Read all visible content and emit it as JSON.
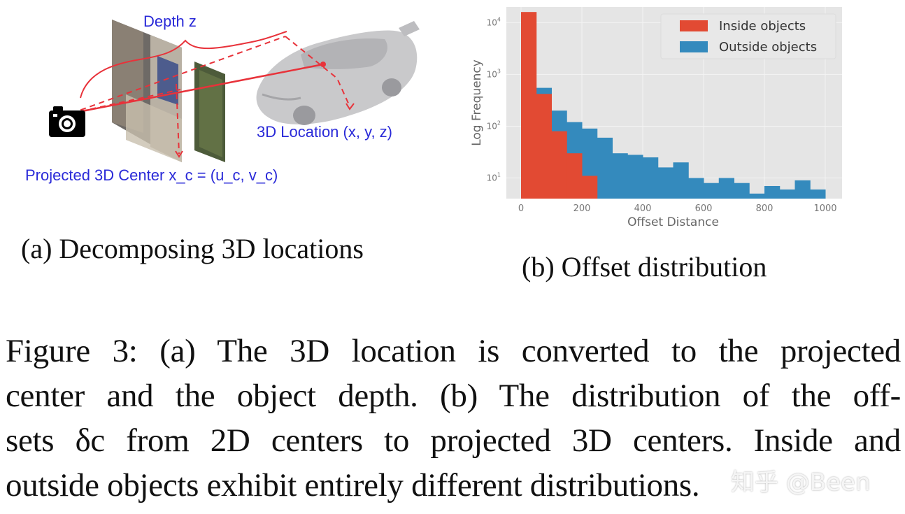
{
  "figure_a": {
    "labels": {
      "depth": "Depth z",
      "location": "3D Location  (x, y, z)",
      "projected": "Projected 3D Center x_c = (u_c, v_c)"
    },
    "icons": [
      "camera-icon",
      "car-model",
      "image-plane"
    ],
    "colors": {
      "label": "#2a2ad8",
      "ray": "#e8323a"
    },
    "subcaption": "(a) Decomposing 3D locations"
  },
  "figure_b": {
    "subcaption": "(b) Offset distribution"
  },
  "chart_data": {
    "type": "bar",
    "subtype": "histogram",
    "yscale": "log",
    "title": "",
    "xlabel": "Offset Distance",
    "ylabel": "Log Frequency",
    "xlim": [
      0,
      1000
    ],
    "ylim": [
      4,
      20000
    ],
    "xticks": [
      "0",
      "200",
      "400",
      "600",
      "800",
      "1000"
    ],
    "yticks": [
      "10^1",
      "10^2",
      "10^3",
      "10^4"
    ],
    "grid": true,
    "background": "#e5e5e5",
    "legend_position": "upper right",
    "bin_width": 50,
    "bin_edges": [
      0,
      50,
      100,
      150,
      200,
      250,
      300,
      350,
      400,
      450,
      500,
      550,
      600,
      650,
      700,
      750,
      800,
      850,
      900,
      950,
      1000
    ],
    "series": [
      {
        "name": "Inside objects",
        "color": "#e24a33",
        "values": [
          16000,
          420,
          80,
          30,
          11,
          0,
          0,
          0,
          0,
          0,
          0,
          0,
          0,
          0,
          0,
          0,
          0,
          0,
          0,
          0
        ]
      },
      {
        "name": "Outside objects",
        "color": "#348abd",
        "values": [
          0,
          550,
          200,
          120,
          90,
          60,
          30,
          28,
          25,
          16,
          20,
          10,
          8,
          10,
          8,
          5,
          7,
          6,
          9,
          6
        ]
      }
    ]
  },
  "caption": {
    "lines": [
      "Figure 3: (a) The 3D location is converted to the projected",
      "center and the object depth. (b) The distribution of the off-",
      "sets δc from 2D centers to projected 3D centers. Inside and",
      "outside objects exhibit entirely different distributions."
    ]
  },
  "watermark": "知乎 @Been"
}
